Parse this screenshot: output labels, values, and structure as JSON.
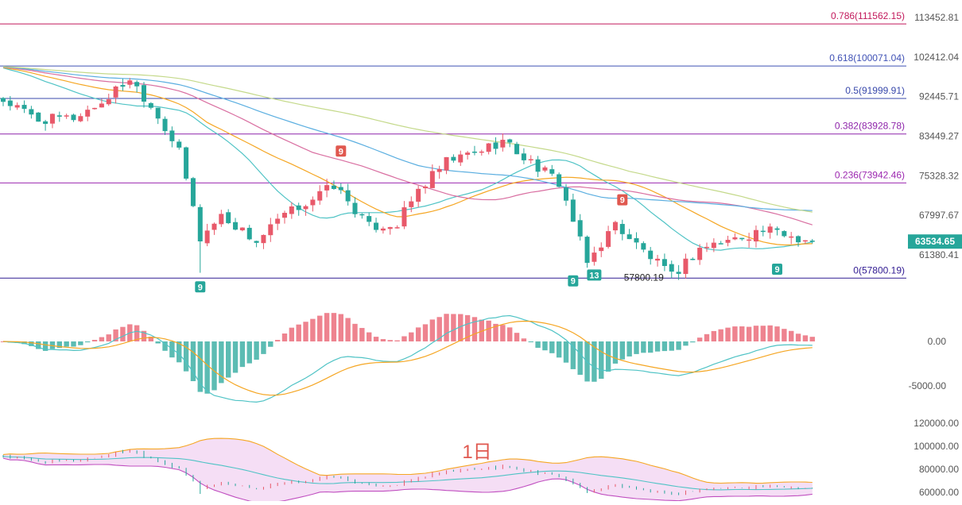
{
  "chart_data": [
    {
      "type": "candlestick",
      "panel": "price",
      "price_axis_ticks": [
        {
          "value": 113452.81,
          "label": "113452.81"
        },
        {
          "value": 102412.04,
          "label": "102412.04"
        },
        {
          "value": 92445.71,
          "label": "92445.71"
        },
        {
          "value": 83449.27,
          "label": "83449.27"
        },
        {
          "value": 75328.32,
          "label": "75328.32"
        },
        {
          "value": 67997.67,
          "label": "67997.67"
        },
        {
          "value": 61380.41,
          "label": "61380.41"
        }
      ],
      "current_price": {
        "value": 63534.65,
        "label": "63534.65",
        "color": "#26a69a"
      },
      "fib_levels": [
        {
          "ratio": 0.786,
          "price": 111562.15,
          "label": "0.786(111562.15)",
          "color": "#c2185b"
        },
        {
          "ratio": 0.618,
          "price": 100071.04,
          "label": "0.618(100071.04)",
          "color": "#3f51b5"
        },
        {
          "ratio": 0.5,
          "price": 91999.91,
          "label": "0.5(91999.91)",
          "color": "#3949ab"
        },
        {
          "ratio": 0.382,
          "price": 83928.78,
          "label": "0.382(83928.78)",
          "color": "#8e24aa"
        },
        {
          "ratio": 0.236,
          "price": 73942.46,
          "label": "0.236(73942.46)",
          "color": "#9c27b0"
        },
        {
          "ratio": 0,
          "price": 57800.19,
          "label": "0(57800.19)",
          "color": "#311b92"
        }
      ],
      "low_annotation": {
        "value": 57800.19,
        "label": "57800.19"
      },
      "td_markers": [
        {
          "label": "9",
          "kind": "sell",
          "bar": 48,
          "price": 78500
        },
        {
          "label": "9",
          "kind": "buy",
          "bar": 28,
          "price": 57800
        },
        {
          "label": "9",
          "kind": "sell",
          "bar": 88,
          "price": 69200
        },
        {
          "label": "9",
          "kind": "buy",
          "bar": 81,
          "price": 58700
        },
        {
          "label": "13",
          "kind": "buy",
          "bar": 84,
          "price": 59600
        },
        {
          "label": "9",
          "kind": "buy",
          "bar": 110,
          "price": 60500
        }
      ],
      "close_path_keypoints": [
        {
          "bar": 0,
          "close": 91500
        },
        {
          "bar": 5,
          "close": 87000
        },
        {
          "bar": 10,
          "close": 87500
        },
        {
          "bar": 14,
          "close": 91000
        },
        {
          "bar": 18,
          "close": 97000
        },
        {
          "bar": 22,
          "close": 88000
        },
        {
          "bar": 25,
          "close": 80000
        },
        {
          "bar": 28,
          "close": 64000
        },
        {
          "bar": 31,
          "close": 68000
        },
        {
          "bar": 36,
          "close": 63500
        },
        {
          "bar": 40,
          "close": 68000
        },
        {
          "bar": 44,
          "close": 71000
        },
        {
          "bar": 47,
          "close": 73500
        },
        {
          "bar": 52,
          "close": 66000
        },
        {
          "bar": 56,
          "close": 66500
        },
        {
          "bar": 59,
          "close": 72500
        },
        {
          "bar": 63,
          "close": 78000
        },
        {
          "bar": 67,
          "close": 80000
        },
        {
          "bar": 71,
          "close": 82500
        },
        {
          "bar": 74,
          "close": 79000
        },
        {
          "bar": 79,
          "close": 74000
        },
        {
          "bar": 83,
          "close": 60000
        },
        {
          "bar": 87,
          "close": 66500
        },
        {
          "bar": 90,
          "close": 63000
        },
        {
          "bar": 95,
          "close": 58000
        },
        {
          "bar": 99,
          "close": 62500
        },
        {
          "bar": 104,
          "close": 64000
        },
        {
          "bar": 108,
          "close": 65500
        },
        {
          "bar": 112,
          "close": 64500
        },
        {
          "bar": 115,
          "close": 63534.65
        }
      ],
      "bar_count": 116,
      "moving_averages": [
        {
          "period": 20,
          "color": "#4fc3c5"
        },
        {
          "period": 30,
          "color": "#f5a623"
        },
        {
          "period": 45,
          "color": "#d96fa1"
        },
        {
          "period": 60,
          "color": "#5aaee0"
        },
        {
          "period": 90,
          "color": "#c4d98a"
        }
      ],
      "up_color": "#e8596a",
      "down_color": "#26a69a"
    },
    {
      "type": "macd",
      "panel": "macd",
      "axis_ticks": [
        {
          "value": 0,
          "label": "0.00"
        },
        {
          "value": -5000,
          "label": "-5000.00"
        }
      ],
      "dif_color": "#4fc3c5",
      "dea_color": "#f5a623"
    },
    {
      "type": "bollinger",
      "panel": "bollinger",
      "axis_ticks": [
        {
          "value": 120000,
          "label": "120000.00"
        },
        {
          "value": 100000,
          "label": "100000.00"
        },
        {
          "value": 80000,
          "label": "80000.00"
        },
        {
          "value": 60000,
          "label": "60000.00"
        }
      ],
      "period_label": "1日",
      "band_fill": "#f3d6f3",
      "upper_color": "#f5a623",
      "lower_color": "#c04fc0",
      "mid_color": "#4fc3c5"
    }
  ]
}
